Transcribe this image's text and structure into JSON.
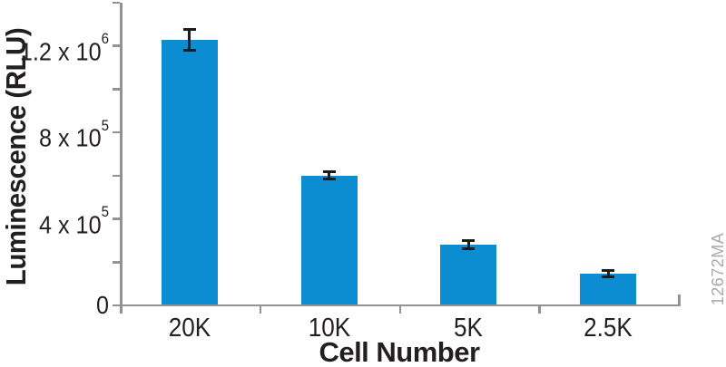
{
  "figure": {
    "watermark": "12672MA"
  },
  "chart_data": {
    "type": "bar",
    "title": "",
    "xlabel": "Cell Number",
    "ylabel": "Luminescence (RLU)",
    "categories": [
      "20K",
      "10K",
      "5K",
      "2.5K"
    ],
    "values": [
      1230000,
      600000,
      280000,
      145000
    ],
    "errors": [
      48000,
      17000,
      19000,
      15000
    ],
    "ylim": [
      0,
      1400000
    ],
    "y_minor_step": 200000,
    "y_major_ticks": [
      {
        "value": 0,
        "label": "0",
        "sup": ""
      },
      {
        "value": 400000,
        "label": "4 x 10",
        "sup": "5"
      },
      {
        "value": 800000,
        "label": "8 x 10",
        "sup": "5"
      },
      {
        "value": 1200000,
        "label": "1.2 x 10",
        "sup": "6"
      }
    ],
    "grid": false,
    "legend": null,
    "bar_color": "#0d8dd1",
    "axis_color": "#909295",
    "error_color": "#1b1b1b",
    "text_color": "#231f20",
    "watermark_color": "#a7a9ac"
  }
}
